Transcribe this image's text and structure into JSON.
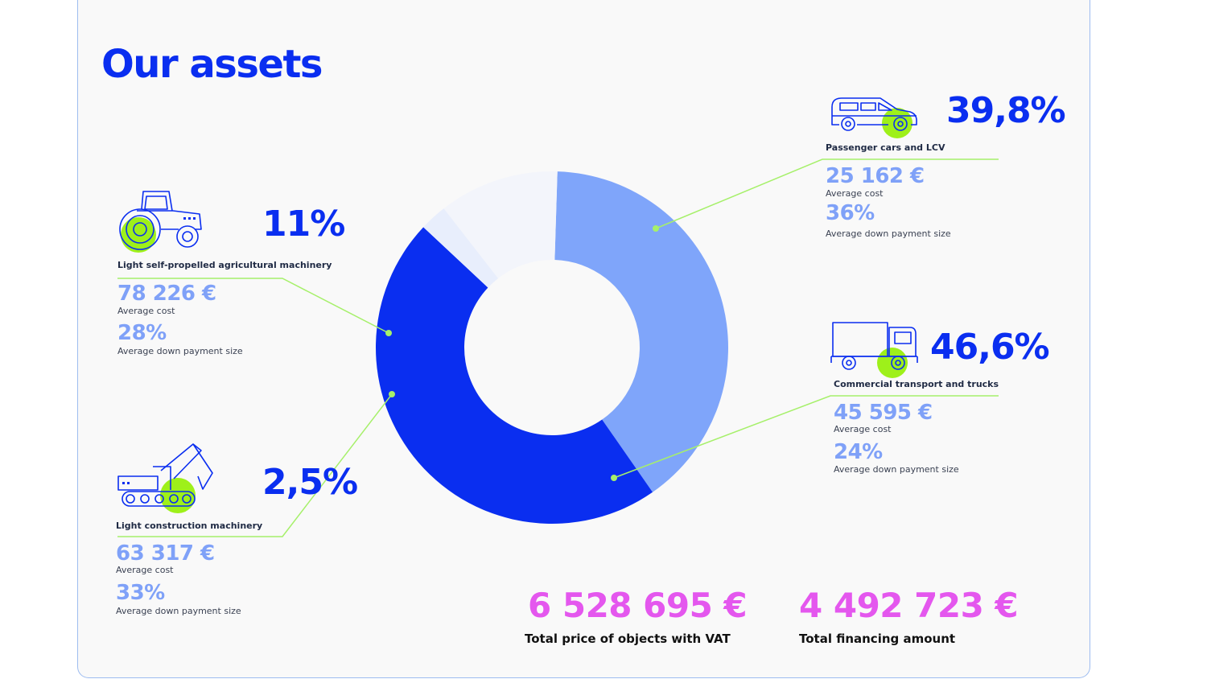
{
  "title": "Our assets",
  "colors": {
    "accent": "#0a2ef0",
    "slice_commercial": "#0a2ef0",
    "slice_passenger": "#7fa5fa",
    "slice_construction": "#e8eefc",
    "slice_agricultural": "#f3f5fb",
    "connector": "#a6f06a",
    "icon_highlight": "#9ef01a",
    "totals": "#e457ee"
  },
  "chart_data": {
    "type": "pie",
    "title": "Our assets",
    "categories": [
      "Passenger cars and LCV",
      "Commercial transport and trucks",
      "Light construction machinery",
      "Light self-propelled agricultural machinery"
    ],
    "values": [
      39.8,
      46.6,
      2.5,
      11
    ],
    "value_labels": [
      "39,8%",
      "46,6%",
      "2,5%",
      "11%"
    ],
    "donut": true
  },
  "segments": {
    "passenger": {
      "percent": "39,8%",
      "label": "Passenger cars and LCV",
      "icon": "car-icon",
      "cost": "25 162 €",
      "cost_label": "Average cost",
      "down": "36%",
      "down_label": "Average down payment size"
    },
    "commercial": {
      "percent": "46,6%",
      "label": "Commercial transport and trucks",
      "icon": "truck-icon",
      "cost": "45 595 €",
      "cost_label": "Average cost",
      "down": "24%",
      "down_label": "Average down payment size"
    },
    "agricultural": {
      "percent": "11%",
      "label": "Light self-propelled agricultural machinery",
      "icon": "tractor-icon",
      "cost": "78 226 €",
      "cost_label": "Average cost",
      "down": "28%",
      "down_label": "Average down payment size"
    },
    "construction": {
      "percent": "2,5%",
      "label": "Light construction machinery",
      "icon": "excavator-icon",
      "cost": "63 317 €",
      "cost_label": "Average cost",
      "down": "33%",
      "down_label": "Average down payment size"
    }
  },
  "totals": {
    "price": "6 528 695 €",
    "price_label": "Total price of objects with VAT",
    "financing": "4 492 723 €",
    "financing_label": "Total financing amount"
  }
}
